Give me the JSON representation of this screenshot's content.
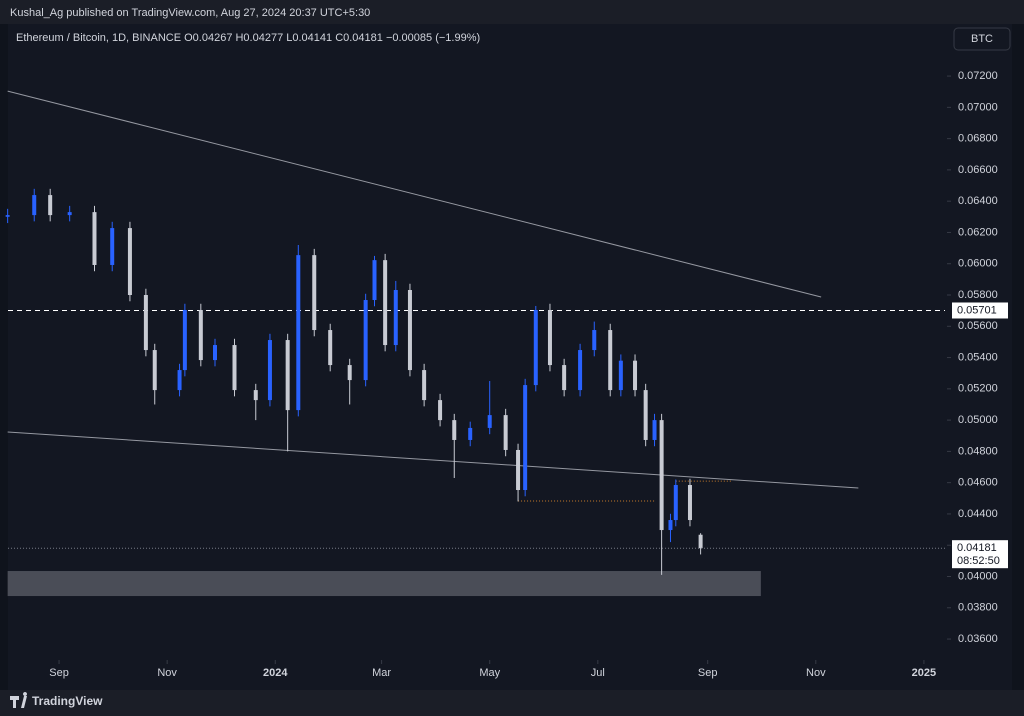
{
  "chart_data": {
    "type": "candlestick",
    "header": "Kushal_Ag published on TradingView.com, Aug 27, 2024 20:37 UTC+5:30",
    "legend": "Ethereum / Bitcoin, 1D, BINANCE  O0.04267  H0.04277  L0.04141  C0.04181  −0.00085 (−1.99%)",
    "currency": "BTC",
    "countdown": "08:52:50",
    "brand": "TradingView",
    "up_color": "#2962ff",
    "down_color": "#c8cbd3",
    "xlim": [
      -28.8,
      499.9
    ],
    "xticks": [
      {
        "value": 0,
        "label": "Sep"
      },
      {
        "value": 61,
        "label": "Nov"
      },
      {
        "value": 122,
        "label": "2024"
      },
      {
        "value": 182,
        "label": "Mar"
      },
      {
        "value": 243,
        "label": "May"
      },
      {
        "value": 304,
        "label": "Jul"
      },
      {
        "value": 366,
        "label": "Sep"
      },
      {
        "value": 427,
        "label": "Nov"
      },
      {
        "value": 488,
        "label": "2025"
      }
    ],
    "ylim": [
      0.03466,
      0.07533
    ],
    "yticks": [
      {
        "value": 0.036,
        "label": "0.03600"
      },
      {
        "value": 0.038,
        "label": "0.03800"
      },
      {
        "value": 0.04,
        "label": "0.04000"
      },
      {
        "value": 0.042,
        "label": "0.04200"
      },
      {
        "value": 0.044,
        "label": "0.04400"
      },
      {
        "value": 0.046,
        "label": "0.04600"
      },
      {
        "value": 0.048,
        "label": "0.04800"
      },
      {
        "value": 0.05,
        "label": "0.05000"
      },
      {
        "value": 0.052,
        "label": "0.05200"
      },
      {
        "value": 0.054,
        "label": "0.05400"
      },
      {
        "value": 0.056,
        "label": "0.05600"
      },
      {
        "value": 0.058,
        "label": "0.05800"
      },
      {
        "value": 0.06,
        "label": "0.06000"
      },
      {
        "value": 0.062,
        "label": "0.06200"
      },
      {
        "value": 0.064,
        "label": "0.06400"
      },
      {
        "value": 0.066,
        "label": "0.06600"
      },
      {
        "value": 0.068,
        "label": "0.06800"
      },
      {
        "value": 0.07,
        "label": "0.07000"
      },
      {
        "value": 0.072,
        "label": "0.07200"
      }
    ],
    "candles": {
      "x": [
        -29,
        -14,
        -5,
        6,
        20,
        30,
        40,
        49,
        54,
        68,
        71,
        80,
        88,
        99,
        111,
        119,
        129,
        135,
        144,
        153,
        164,
        173,
        178,
        184,
        190,
        198,
        206,
        215,
        223,
        232,
        243,
        252,
        259,
        263,
        269,
        277,
        285,
        294,
        302,
        311,
        317,
        325,
        331,
        336,
        340,
        345,
        348,
        356,
        362
      ],
      "open": [
        0.063,
        0.06311,
        0.06439,
        0.06311,
        0.0633,
        0.05992,
        0.06228,
        0.058,
        0.05448,
        0.05192,
        0.0532,
        0.05704,
        0.05384,
        0.0548,
        0.05192,
        0.05128,
        0.05512,
        0.05064,
        0.06055,
        0.05576,
        0.05352,
        0.05256,
        0.05768,
        0.06023,
        0.0548,
        0.05832,
        0.0532,
        0.05128,
        0.05,
        0.04873,
        0.0495,
        0.05032,
        0.04809,
        0.04553,
        0.05224,
        0.05704,
        0.05352,
        0.05192,
        0.05448,
        0.05576,
        0.05192,
        0.0538,
        0.05192,
        0.04873,
        0.05,
        0.04297,
        0.04361,
        0.04585,
        0.04267
      ],
      "high": [
        0.06351,
        0.06479,
        0.06479,
        0.0637,
        0.0637,
        0.06268,
        0.06268,
        0.0584,
        0.05488,
        0.0536,
        0.05744,
        0.05744,
        0.0552,
        0.0552,
        0.05232,
        0.05552,
        0.05552,
        0.0612,
        0.06095,
        0.05616,
        0.05392,
        0.05808,
        0.0605,
        0.06063,
        0.0589,
        0.05872,
        0.0536,
        0.05168,
        0.0504,
        0.0499,
        0.0525,
        0.05072,
        0.04849,
        0.05264,
        0.0573,
        0.05744,
        0.05392,
        0.05488,
        0.0563,
        0.05616,
        0.0542,
        0.0542,
        0.05232,
        0.0504,
        0.0504,
        0.04401,
        0.0462,
        0.04625,
        0.04277
      ],
      "low": [
        0.0626,
        0.06271,
        0.06271,
        0.06271,
        0.05952,
        0.05952,
        0.0576,
        0.05408,
        0.051,
        0.05152,
        0.0528,
        0.05344,
        0.05344,
        0.05152,
        0.05,
        0.05088,
        0.048,
        0.05024,
        0.05536,
        0.05312,
        0.051,
        0.05216,
        0.05728,
        0.0544,
        0.0544,
        0.0528,
        0.05088,
        0.0496,
        0.0463,
        0.04833,
        0.0491,
        0.04769,
        0.0448,
        0.04513,
        0.05184,
        0.05312,
        0.05152,
        0.05152,
        0.05408,
        0.05152,
        0.05152,
        0.05152,
        0.04833,
        0.04833,
        0.0401,
        0.0422,
        0.04321,
        0.04321,
        0.04141
      ],
      "close": [
        0.06311,
        0.06439,
        0.06311,
        0.0633,
        0.05992,
        0.06228,
        0.058,
        0.05448,
        0.05192,
        0.0532,
        0.05704,
        0.05384,
        0.0548,
        0.05192,
        0.05128,
        0.05512,
        0.05064,
        0.06055,
        0.05576,
        0.05352,
        0.05256,
        0.05768,
        0.06023,
        0.0548,
        0.05832,
        0.0532,
        0.05128,
        0.05,
        0.04873,
        0.0495,
        0.05032,
        0.04809,
        0.04553,
        0.05224,
        0.05704,
        0.05352,
        0.05192,
        0.05448,
        0.05576,
        0.05192,
        0.0538,
        0.05192,
        0.04873,
        0.05,
        0.04297,
        0.04361,
        0.04585,
        0.04361,
        0.04181
      ]
    },
    "trendlines": [
      {
        "x": [
          -29,
          430
        ],
        "y": [
          0.07104,
          0.05787
        ],
        "color": "#9598a1"
      },
      {
        "x": [
          -29,
          451
        ],
        "y": [
          0.04924,
          0.04566
        ],
        "color": "#9598a1"
      }
    ],
    "zone": {
      "x": [
        -29,
        396
      ],
      "y": [
        0.03875,
        0.04035
      ],
      "color": "#4a4d57"
    },
    "level": {
      "y": 0.05701,
      "color": "#ffffff"
    },
    "dotted_levels": [
      {
        "x": [
          259,
          336
        ],
        "y": 0.04483,
        "color": "#c77b2a"
      },
      {
        "x": [
          348,
          380
        ],
        "y": 0.0461,
        "color": "#c77b2a"
      }
    ]
  }
}
